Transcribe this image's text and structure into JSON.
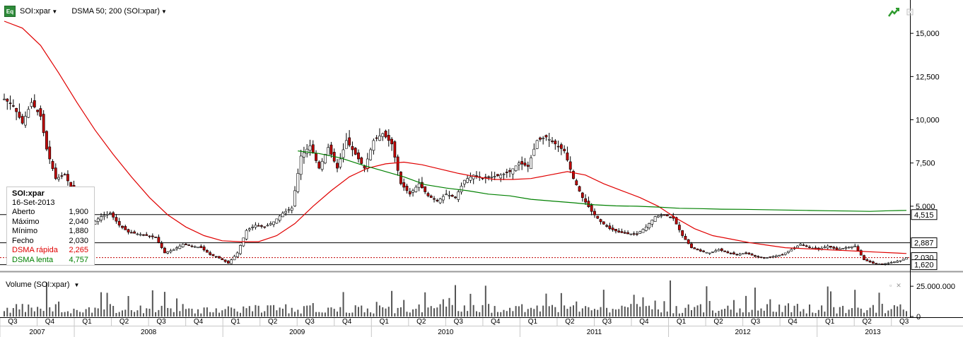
{
  "toolbar": {
    "icon_label": "Eq",
    "symbol": "SOI:xpar",
    "indicator": "DSMA 50; 200 (SOI:xpar)"
  },
  "legend": {
    "symbol": "SOI:xpar",
    "date": "16-Set-2013",
    "rows": [
      {
        "label": "Aberto",
        "value": "1,900"
      },
      {
        "label": "Máximo",
        "value": "2,040"
      },
      {
        "label": "Mínimo",
        "value": "1,880"
      },
      {
        "label": "Fecho",
        "value": "2,030"
      },
      {
        "label": "DSMA rápida",
        "value": "2,265"
      },
      {
        "label": "DSMA lenta",
        "value": "4,757"
      }
    ]
  },
  "volume_panel": {
    "title": "Volume (SOI:xpar)"
  },
  "colors": {
    "fast_ma": "#e00000",
    "slow_ma": "#008000",
    "candle_up": "#ffffff",
    "candle_down": "#c00000",
    "volume_bar": "#555555"
  },
  "icons": [
    "chart-trend-icon",
    "window-restore-icon",
    "close-icon"
  ],
  "chart_data": {
    "type": "candlestick",
    "price_axis": {
      "ticks": [
        5000,
        7500,
        10000,
        12500,
        15000
      ],
      "tick_labels": [
        "5,000",
        "7,500",
        "10,000",
        "12,500",
        "15,000"
      ],
      "range": [
        1400,
        16600
      ]
    },
    "volume_axis": {
      "ticks": [
        0,
        25000000
      ],
      "tick_labels": [
        "0",
        "25.000.000"
      ],
      "range": [
        0,
        35000000
      ]
    },
    "price_lines": [
      {
        "value": 4515,
        "label": "4,515"
      },
      {
        "value": 2887,
        "label": "2,887"
      },
      {
        "value": 2030,
        "label": "2,030"
      },
      {
        "value": 1620,
        "label": "1,620"
      }
    ],
    "quarters": [
      "Q3",
      "Q4",
      "Q1",
      "Q2",
      "Q3",
      "Q4",
      "Q1",
      "Q2",
      "Q3",
      "Q4",
      "Q1",
      "Q2",
      "Q3",
      "Q4",
      "Q1",
      "Q2",
      "Q3",
      "Q4",
      "Q1",
      "Q2",
      "Q3",
      "Q4",
      "Q1",
      "Q2",
      "Q3"
    ],
    "years": [
      "2007",
      "2008",
      "2009",
      "2010",
      "2011",
      "2012",
      "2013"
    ],
    "close_path": [
      [
        0,
        11200
      ],
      [
        3,
        10800
      ],
      [
        6,
        9800
      ],
      [
        9,
        11000
      ],
      [
        12,
        10200
      ],
      [
        14,
        8300
      ],
      [
        17,
        6600
      ],
      [
        20,
        6800
      ],
      [
        23,
        5800
      ],
      [
        26,
        4800
      ],
      [
        29,
        4000
      ],
      [
        32,
        4400
      ],
      [
        35,
        4600
      ],
      [
        38,
        3900
      ],
      [
        41,
        3500
      ],
      [
        44,
        3400
      ],
      [
        47,
        3300
      ],
      [
        50,
        3200
      ],
      [
        53,
        2300
      ],
      [
        56,
        2500
      ],
      [
        59,
        2800
      ],
      [
        62,
        2700
      ],
      [
        65,
        2600
      ],
      [
        68,
        2200
      ],
      [
        71,
        2000
      ],
      [
        74,
        1700
      ],
      [
        77,
        2300
      ],
      [
        80,
        3600
      ],
      [
        83,
        3900
      ],
      [
        86,
        3800
      ],
      [
        89,
        4100
      ],
      [
        92,
        4600
      ],
      [
        95,
        4900
      ],
      [
        98,
        7900
      ],
      [
        101,
        8500
      ],
      [
        104,
        7200
      ],
      [
        107,
        8400
      ],
      [
        110,
        7200
      ],
      [
        113,
        8800
      ],
      [
        116,
        8000
      ],
      [
        119,
        7200
      ],
      [
        122,
        8800
      ],
      [
        125,
        9200
      ],
      [
        128,
        8600
      ],
      [
        131,
        6300
      ],
      [
        134,
        5700
      ],
      [
        137,
        6300
      ],
      [
        140,
        5600
      ],
      [
        143,
        5300
      ],
      [
        146,
        5700
      ],
      [
        149,
        5500
      ],
      [
        152,
        6500
      ],
      [
        155,
        6800
      ],
      [
        158,
        6600
      ],
      [
        161,
        6700
      ],
      [
        164,
        6800
      ],
      [
        167,
        7000
      ],
      [
        170,
        7500
      ],
      [
        173,
        7300
      ],
      [
        176,
        8800
      ],
      [
        179,
        9000
      ],
      [
        182,
        8600
      ],
      [
        185,
        8200
      ],
      [
        188,
        6600
      ],
      [
        191,
        5500
      ],
      [
        194,
        4700
      ],
      [
        197,
        4100
      ],
      [
        200,
        3700
      ],
      [
        203,
        3500
      ],
      [
        206,
        3400
      ],
      [
        209,
        3400
      ],
      [
        212,
        3800
      ],
      [
        215,
        4400
      ],
      [
        218,
        4500
      ],
      [
        221,
        4300
      ],
      [
        224,
        3300
      ],
      [
        227,
        2600
      ],
      [
        230,
        2400
      ],
      [
        233,
        2300
      ],
      [
        236,
        2500
      ],
      [
        239,
        2300
      ],
      [
        242,
        2200
      ],
      [
        245,
        2300
      ],
      [
        248,
        2100
      ],
      [
        251,
        2000
      ],
      [
        254,
        2100
      ],
      [
        257,
        2200
      ],
      [
        260,
        2500
      ],
      [
        263,
        2800
      ],
      [
        266,
        2600
      ],
      [
        269,
        2500
      ],
      [
        272,
        2700
      ],
      [
        275,
        2500
      ],
      [
        278,
        2600
      ],
      [
        281,
        2700
      ],
      [
        284,
        1900
      ],
      [
        287,
        1700
      ],
      [
        290,
        1650
      ],
      [
        293,
        1750
      ],
      [
        296,
        1850
      ],
      [
        298,
        2030
      ]
    ],
    "fast_ma_path": [
      [
        0,
        15700
      ],
      [
        6,
        15300
      ],
      [
        12,
        14300
      ],
      [
        18,
        12700
      ],
      [
        24,
        11000
      ],
      [
        30,
        9400
      ],
      [
        36,
        8000
      ],
      [
        42,
        6700
      ],
      [
        48,
        5500
      ],
      [
        54,
        4500
      ],
      [
        60,
        3800
      ],
      [
        66,
        3300
      ],
      [
        72,
        3000
      ],
      [
        78,
        2950
      ],
      [
        84,
        2950
      ],
      [
        90,
        3300
      ],
      [
        96,
        4000
      ],
      [
        102,
        5000
      ],
      [
        108,
        5900
      ],
      [
        114,
        6700
      ],
      [
        120,
        7200
      ],
      [
        126,
        7450
      ],
      [
        132,
        7550
      ],
      [
        138,
        7400
      ],
      [
        144,
        7150
      ],
      [
        150,
        6900
      ],
      [
        156,
        6700
      ],
      [
        162,
        6550
      ],
      [
        168,
        6550
      ],
      [
        174,
        6600
      ],
      [
        180,
        6800
      ],
      [
        186,
        7000
      ],
      [
        192,
        6800
      ],
      [
        198,
        6300
      ],
      [
        204,
        5900
      ],
      [
        210,
        5500
      ],
      [
        216,
        5000
      ],
      [
        222,
        4300
      ],
      [
        228,
        3700
      ],
      [
        234,
        3300
      ],
      [
        240,
        3100
      ],
      [
        246,
        2900
      ],
      [
        252,
        2750
      ],
      [
        258,
        2600
      ],
      [
        264,
        2550
      ],
      [
        270,
        2500
      ],
      [
        276,
        2450
      ],
      [
        282,
        2400
      ],
      [
        288,
        2350
      ],
      [
        294,
        2300
      ],
      [
        298,
        2265
      ]
    ],
    "slow_ma_path": [
      [
        97,
        8200
      ],
      [
        104,
        8050
      ],
      [
        111,
        7800
      ],
      [
        118,
        7400
      ],
      [
        125,
        7050
      ],
      [
        132,
        6700
      ],
      [
        139,
        6250
      ],
      [
        146,
        6050
      ],
      [
        153,
        5900
      ],
      [
        160,
        5700
      ],
      [
        167,
        5600
      ],
      [
        174,
        5400
      ],
      [
        181,
        5300
      ],
      [
        188,
        5200
      ],
      [
        195,
        5080
      ],
      [
        202,
        5020
      ],
      [
        209,
        5000
      ],
      [
        216,
        4950
      ],
      [
        223,
        4880
      ],
      [
        230,
        4860
      ],
      [
        237,
        4830
      ],
      [
        244,
        4820
      ],
      [
        251,
        4800
      ],
      [
        258,
        4780
      ],
      [
        265,
        4760
      ],
      [
        272,
        4740
      ],
      [
        279,
        4720
      ],
      [
        286,
        4700
      ],
      [
        292,
        4740
      ],
      [
        298,
        4757
      ]
    ]
  }
}
